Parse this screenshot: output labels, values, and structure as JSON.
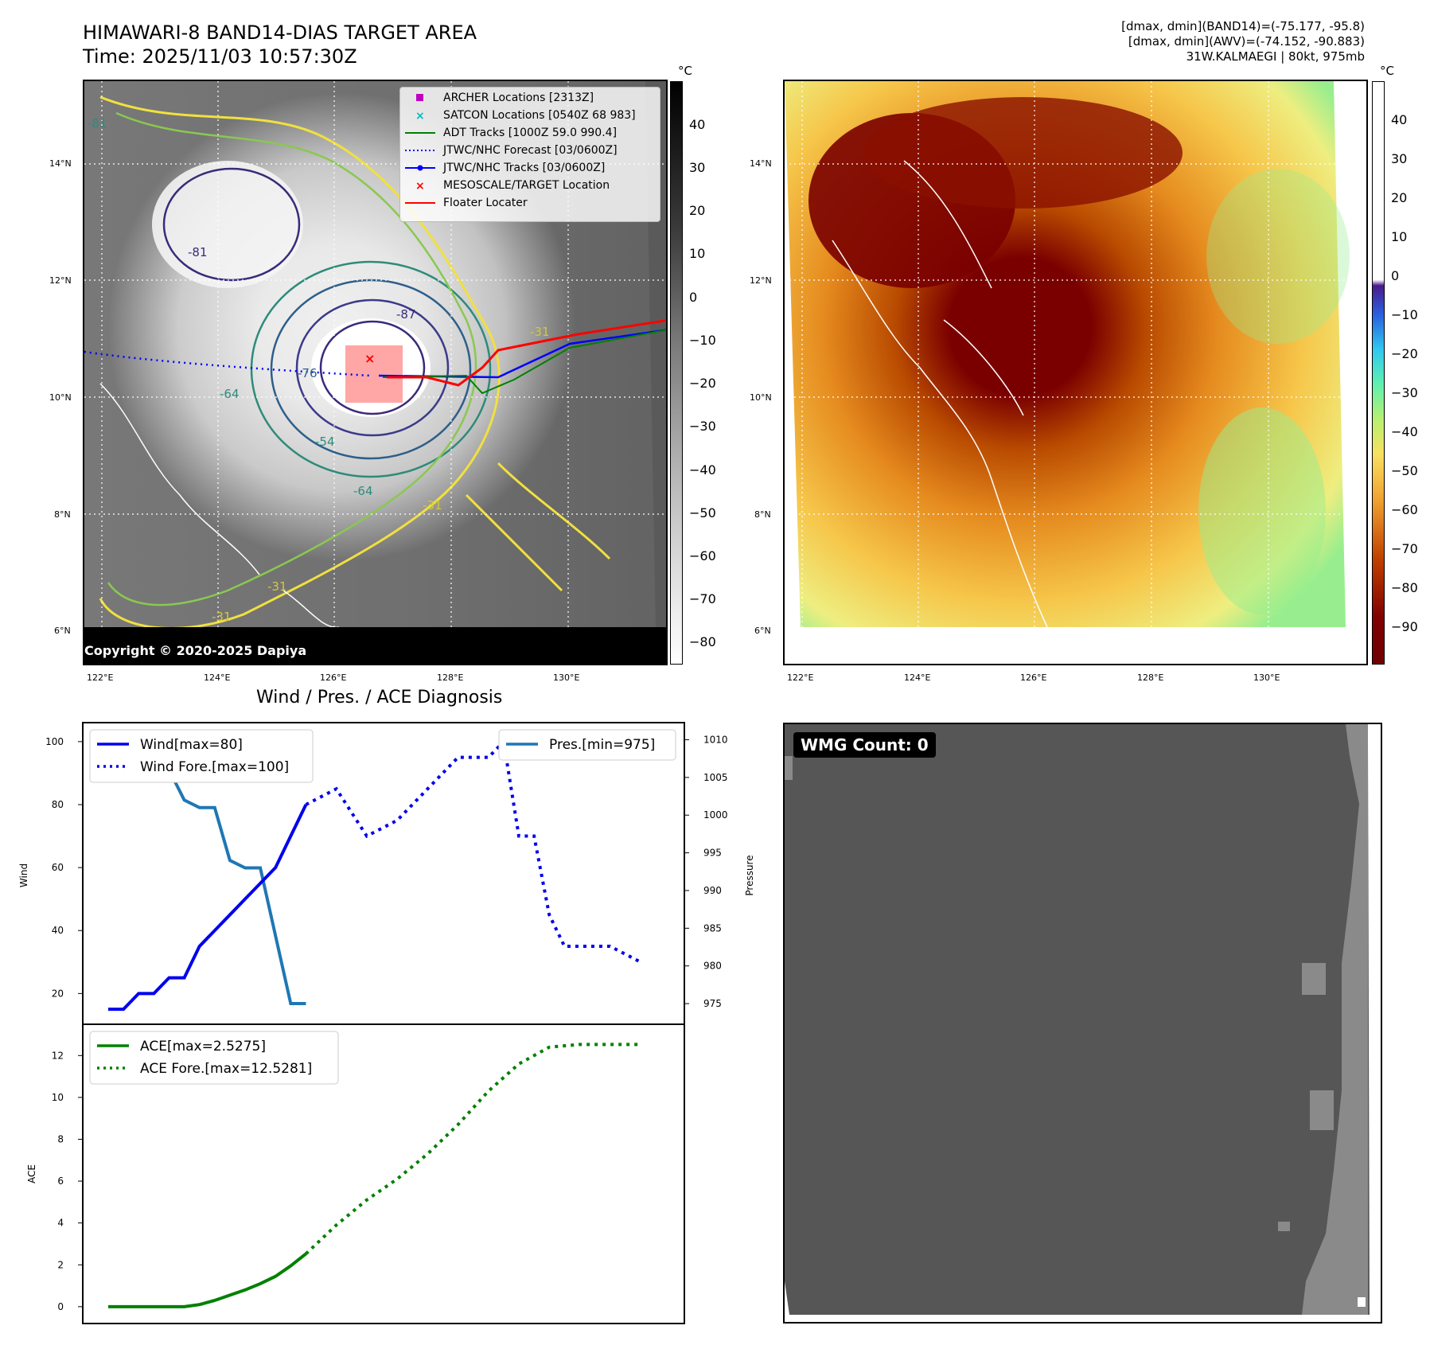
{
  "header": {
    "title_line1": "HIMAWARI-8 BAND14-DIAS TARGET AREA",
    "title_line2": "Time: 2025/11/03 10:57:30Z",
    "info_line1": "[dmax, dmin](BAND14)=(-75.177, -95.8)",
    "info_line2": "[dmax, dmin](AWV)=(-74.152, -90.883)",
    "info_line3": "31W.KALMAEGI | 80kt, 975mb"
  },
  "map_axes": {
    "lat_labels": [
      "14°N",
      "12°N",
      "10°N",
      "8°N",
      "6°N"
    ],
    "lon_labels": [
      "122°E",
      "124°E",
      "126°E",
      "128°E",
      "130°E"
    ]
  },
  "colorbar_left": {
    "unit": "°C",
    "ticks": [
      "40",
      "30",
      "20",
      "10",
      "0",
      "−10",
      "−20",
      "−30",
      "−40",
      "−50",
      "−60",
      "−70",
      "−80"
    ]
  },
  "colorbar_right": {
    "unit": "°C",
    "ticks": [
      "40",
      "30",
      "20",
      "10",
      "0",
      "−10",
      "−20",
      "−30",
      "−40",
      "−50",
      "−60",
      "−70",
      "−80",
      "−90"
    ]
  },
  "map_legend": [
    {
      "label": "ARCHER Locations [2313Z]",
      "marker": "square",
      "color": "#c000c0"
    },
    {
      "label": "SATCON Locations [0540Z 68 983]",
      "marker": "x",
      "color": "#00bcbc"
    },
    {
      "label": "ADT Tracks [1000Z 59.0 990.4]",
      "marker": "line",
      "color": "#008000"
    },
    {
      "label": "JTWC/NHC Forecast [03/0600Z]",
      "marker": "dotted",
      "color": "#0000ff"
    },
    {
      "label": "JTWC/NHC Tracks [03/0600Z]",
      "marker": "line-dot",
      "color": "#0000ff"
    },
    {
      "label": "MESOSCALE/TARGET Location",
      "marker": "x",
      "color": "#ff0000"
    },
    {
      "label": "Floater Locater",
      "marker": "line",
      "color": "#ff0000"
    }
  ],
  "contour_labels": [
    "-81",
    "-87",
    "-76",
    "-64",
    "-54",
    "-31",
    "-64",
    "-31",
    "-31",
    "-31",
    "-81"
  ],
  "copyright": "Copyright © 2020-2025 Dapiya",
  "diagnosis": {
    "title": "Wind / Pres. / ACE Diagnosis",
    "wind_ylabel": "Wind",
    "pres_ylabel": "Pressure",
    "ace_ylabel": "ACE",
    "wind_legend": [
      "Wind[max=80]",
      "Wind Fore.[max=100]"
    ],
    "pres_legend": [
      "Pres.[min=975]"
    ],
    "ace_legend": [
      "ACE[max=2.5275]",
      "ACE Fore.[max=12.5281]"
    ],
    "wind_ticks": [
      "100",
      "80",
      "60",
      "40",
      "20"
    ],
    "pres_ticks": [
      "1010",
      "1005",
      "1000",
      "995",
      "990",
      "985",
      "980",
      "975"
    ],
    "ace_ticks": [
      "12",
      "10",
      "8",
      "6",
      "4",
      "2",
      "0"
    ]
  },
  "wmg_label": "WMG Count: 0",
  "chart_data": [
    {
      "type": "line",
      "title": "Wind / Pres. / ACE Diagnosis",
      "ylabel": "Wind",
      "ylim": [
        12,
        103
      ],
      "xlim": [
        0,
        36
      ],
      "series": [
        {
          "name": "Wind[max=80]",
          "color": "#0000ee",
          "style": "solid",
          "x": [
            0,
            1,
            2,
            3,
            4,
            5,
            6,
            7,
            8,
            9,
            10,
            11,
            12,
            13
          ],
          "y": [
            15,
            15,
            20,
            20,
            25,
            25,
            35,
            40,
            45,
            50,
            55,
            60,
            70,
            80
          ]
        },
        {
          "name": "Wind Fore.[max=100]",
          "color": "#0000ee",
          "style": "dotted",
          "x": [
            13,
            15,
            17,
            19,
            21,
            23,
            25,
            26,
            27,
            28,
            29,
            30,
            31,
            33,
            35
          ],
          "y": [
            80,
            85,
            70,
            75,
            85,
            95,
            95,
            100,
            70,
            70,
            45,
            35,
            35,
            35,
            30
          ]
        }
      ]
    },
    {
      "type": "line",
      "ylabel": "Pressure",
      "ylim": [
        973,
        1011
      ],
      "series": [
        {
          "name": "Pres.[min=975]",
          "color": "#1f77b4",
          "style": "solid",
          "x": [
            0,
            1,
            2,
            3,
            4,
            5,
            6,
            7,
            8,
            9,
            10,
            11,
            12,
            13
          ],
          "y": [
            1010,
            1008,
            1008,
            1008,
            1006,
            1002,
            1001,
            1001,
            994,
            993,
            993,
            984,
            975,
            975
          ]
        }
      ]
    },
    {
      "type": "line",
      "ylabel": "ACE",
      "ylim": [
        -0.5,
        13
      ],
      "series": [
        {
          "name": "ACE[max=2.5275]",
          "color": "#008000",
          "style": "solid",
          "x": [
            0,
            2,
            4,
            5,
            6,
            7,
            8,
            9,
            10,
            11,
            12,
            13
          ],
          "y": [
            0,
            0,
            0,
            0,
            0.1,
            0.3,
            0.55,
            0.8,
            1.1,
            1.45,
            1.95,
            2.5275
          ]
        },
        {
          "name": "ACE Fore.[max=12.5281]",
          "color": "#008000",
          "style": "dotted",
          "x": [
            13,
            15,
            17,
            19,
            21,
            23,
            25,
            27,
            29,
            31,
            33,
            35
          ],
          "y": [
            2.5275,
            3.9,
            5.1,
            6.1,
            7.3,
            8.7,
            10.3,
            11.6,
            12.4,
            12.5281,
            12.5281,
            12.5281
          ]
        }
      ]
    }
  ]
}
